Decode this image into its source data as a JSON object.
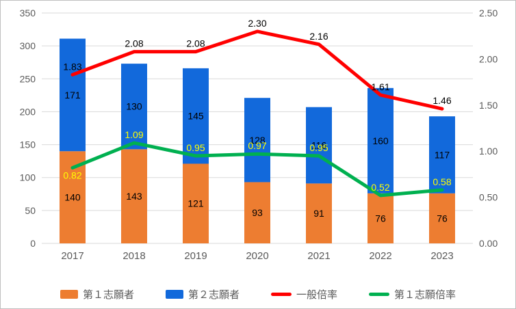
{
  "chart_data": {
    "type": "combo",
    "subtype": "stacked-bar+line",
    "title": "",
    "categories": [
      "2017",
      "2018",
      "2019",
      "2020",
      "2021",
      "2022",
      "2023"
    ],
    "bar_series": [
      {
        "name": "第１志願者",
        "color": "#ED7D31",
        "axis": "left",
        "values": [
          140,
          143,
          121,
          93,
          91,
          76,
          76
        ]
      },
      {
        "name": "第２志願者",
        "color": "#1269DB",
        "axis": "left",
        "values": [
          171,
          130,
          145,
          128,
          116,
          160,
          117
        ]
      }
    ],
    "line_series": [
      {
        "name": "一般倍率",
        "color": "#FF0000",
        "axis": "right",
        "values": [
          1.83,
          2.08,
          2.08,
          2.3,
          2.16,
          1.61,
          1.46
        ],
        "labels": [
          "1.83",
          "2.08",
          "2.08",
          "2.30",
          "2.16",
          "1.61",
          "1.46"
        ],
        "label_color": "#000000"
      },
      {
        "name": "第１志願倍率",
        "color": "#00B050",
        "axis": "right",
        "values": [
          0.82,
          1.09,
          0.95,
          0.97,
          0.95,
          0.52,
          0.58
        ],
        "labels": [
          "0.82",
          "1.09",
          "0.95",
          "0.97",
          "0.95",
          "0.52",
          "0.58"
        ],
        "label_color": "#FFFF00"
      }
    ],
    "left_axis": {
      "min": 0,
      "max": 350,
      "step": 50,
      "ticks": [
        "0",
        "50",
        "100",
        "150",
        "200",
        "250",
        "300",
        "350"
      ]
    },
    "right_axis": {
      "min": 0,
      "max": 2.5,
      "step": 0.5,
      "ticks": [
        "0.00",
        "0.50",
        "1.00",
        "1.50",
        "2.00",
        "2.50"
      ]
    },
    "grid": true,
    "gridline_color": "#D9D9D9",
    "legend_position": "bottom"
  }
}
